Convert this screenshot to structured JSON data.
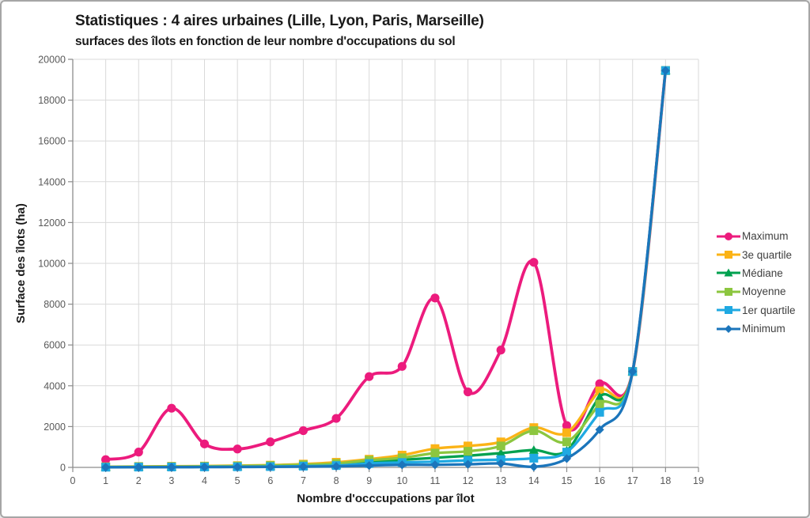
{
  "chart_data": {
    "type": "line",
    "title": "Statistiques : 4 aires urbaines (Lille, Lyon, Paris, Marseille)",
    "subtitle": "surfaces des îlots en fonction de leur nombre d'occupations du sol",
    "xlabel": "Nombre d'occcupations par îlot",
    "ylabel": "Surface des îlots (ha)",
    "xlim": [
      0,
      19
    ],
    "ylim": [
      0,
      20000
    ],
    "x_ticks": [
      0,
      1,
      2,
      3,
      4,
      5,
      6,
      7,
      8,
      9,
      10,
      11,
      12,
      13,
      14,
      15,
      16,
      17,
      18,
      19
    ],
    "y_ticks": [
      0,
      2000,
      4000,
      6000,
      8000,
      10000,
      12000,
      14000,
      16000,
      18000,
      20000
    ],
    "grid": true,
    "legend_position": "right",
    "x": [
      1,
      2,
      3,
      4,
      5,
      6,
      7,
      8,
      9,
      10,
      11,
      12,
      13,
      14,
      15,
      16,
      17,
      18
    ],
    "series": [
      {
        "name": "Maximum",
        "color": "#EC1B7D",
        "marker": "circle",
        "values": [
          380,
          750,
          2900,
          1150,
          900,
          1250,
          1800,
          2400,
          4450,
          4950,
          8300,
          3700,
          5750,
          10050,
          2050,
          4100,
          4700,
          19450
        ]
      },
      {
        "name": "3e quartile",
        "color": "#FBB316",
        "marker": "square",
        "values": [
          30,
          45,
          55,
          65,
          85,
          110,
          160,
          250,
          400,
          600,
          920,
          1050,
          1250,
          1950,
          1700,
          3750,
          4700,
          19450
        ]
      },
      {
        "name": "Médiane",
        "color": "#00A14F",
        "marker": "triangle",
        "values": [
          15,
          25,
          30,
          40,
          45,
          60,
          90,
          130,
          280,
          370,
          470,
          570,
          700,
          850,
          820,
          3450,
          4700,
          19450
        ]
      },
      {
        "name": "Moyenne",
        "color": "#8CC63F",
        "marker": "square",
        "values": [
          25,
          35,
          40,
          50,
          65,
          90,
          130,
          190,
          350,
          470,
          700,
          790,
          1050,
          1800,
          1250,
          3100,
          4700,
          19450
        ]
      },
      {
        "name": "1er quartile",
        "color": "#1FA9E2",
        "marker": "square",
        "values": [
          10,
          15,
          20,
          25,
          30,
          40,
          60,
          90,
          190,
          240,
          280,
          345,
          380,
          450,
          750,
          2700,
          4700,
          19450
        ]
      },
      {
        "name": "Minimum",
        "color": "#1B75BB",
        "marker": "diamond",
        "values": [
          5,
          10,
          10,
          15,
          20,
          25,
          35,
          50,
          90,
          125,
          125,
          150,
          190,
          30,
          430,
          1850,
          4700,
          19450
        ]
      }
    ],
    "axis_colors": {
      "grid": "#d9d9d9",
      "axis_line": "#8c8c8c",
      "plot_border": "#c8c8c8",
      "tick_text": "#595959"
    }
  }
}
